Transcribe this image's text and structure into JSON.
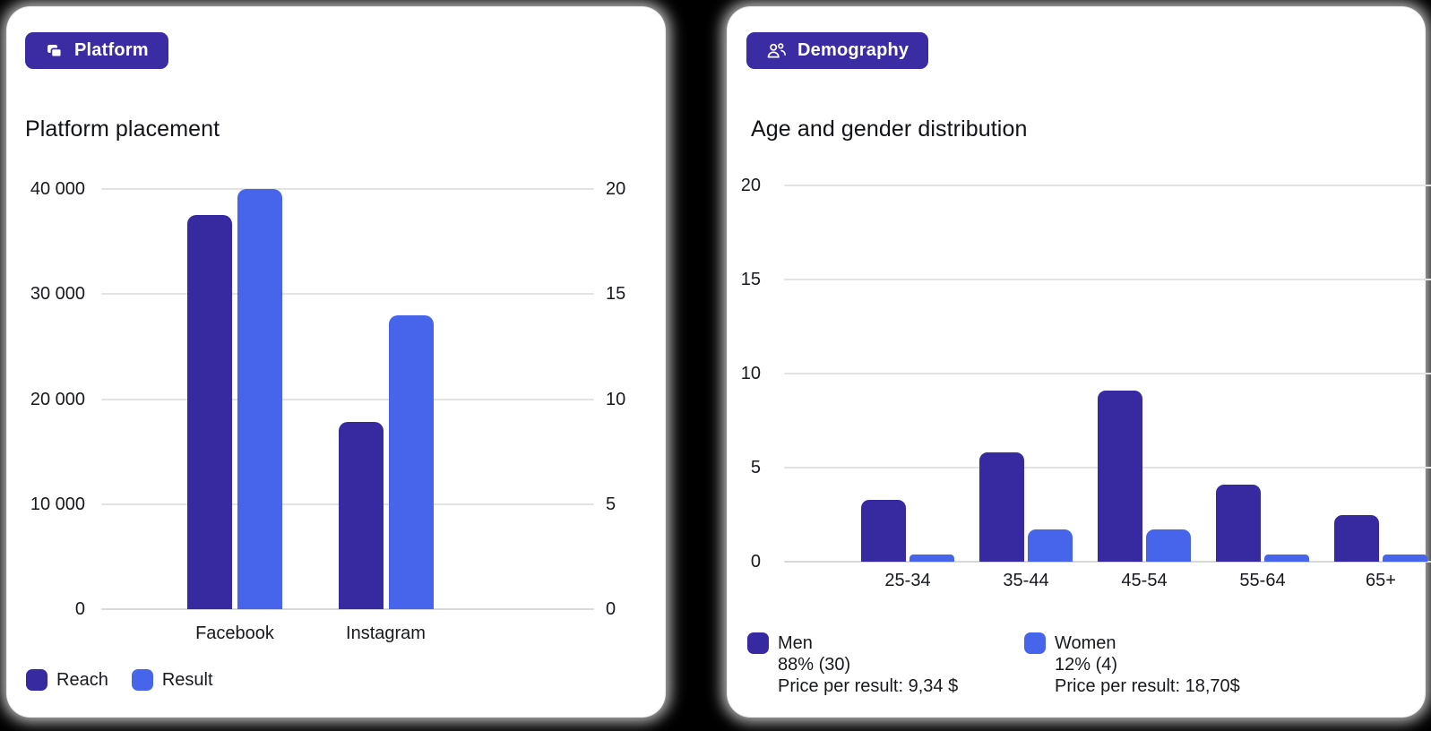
{
  "page": {
    "background": "#000000",
    "card_background": "#ffffff"
  },
  "badges": {
    "platform": {
      "label": "Platform",
      "icon": "copy-icon",
      "background": "#3c2ca4",
      "text_color": "#ffffff"
    },
    "demography": {
      "label": "Demography",
      "icon": "people-icon",
      "background": "#3c2ca4",
      "text_color": "#ffffff"
    }
  },
  "colors": {
    "dark_purple": "#372aa1",
    "bright_blue": "#4765eb",
    "gridline": "#e3e3e3"
  },
  "chart_data": [
    {
      "id": "platform-placement",
      "type": "bar",
      "title": "Platform placement",
      "categories": [
        "Facebook",
        "Instagram"
      ],
      "series": [
        {
          "name": "Reach",
          "axis": "left",
          "color": "#372aa1",
          "values": [
            37500,
            17800
          ]
        },
        {
          "name": "Result",
          "axis": "right",
          "color": "#4765eb",
          "values": [
            20,
            14
          ]
        }
      ],
      "axes": {
        "left": {
          "ticks": [
            "40 000",
            "30 000",
            "20 000",
            "10 000",
            "0"
          ],
          "min": 0,
          "max": 40000
        },
        "right": {
          "ticks": [
            "20",
            "15",
            "10",
            "5",
            "0"
          ],
          "min": 0,
          "max": 20
        }
      },
      "grid": true,
      "legend_position": "bottom-left",
      "legend": [
        {
          "label": "Reach"
        },
        {
          "label": "Result"
        }
      ]
    },
    {
      "id": "age-gender-distribution",
      "type": "bar",
      "title": "Age and gender distribution",
      "categories": [
        "25-34",
        "35-44",
        "45-54",
        "55-64",
        "65+"
      ],
      "series": [
        {
          "name": "Men",
          "axis": "left",
          "color": "#372aa1",
          "values": [
            3.3,
            5.8,
            9.1,
            4.1,
            2.5
          ]
        },
        {
          "name": "Women",
          "axis": "left",
          "color": "#4765eb",
          "values": [
            0.4,
            1.7,
            1.7,
            0.4,
            0.4
          ]
        }
      ],
      "axes": {
        "left": {
          "ticks": [
            "20",
            "15",
            "10",
            "5",
            "0"
          ],
          "min": 0,
          "max": 20
        }
      },
      "grid": true,
      "legend_position": "bottom",
      "legend": [
        {
          "label": "Men",
          "share": "88% (30)",
          "price": "Price per result: 9,34 $"
        },
        {
          "label": "Women",
          "share": "12% (4)",
          "price": "Price per result: 18,70$"
        }
      ]
    }
  ]
}
